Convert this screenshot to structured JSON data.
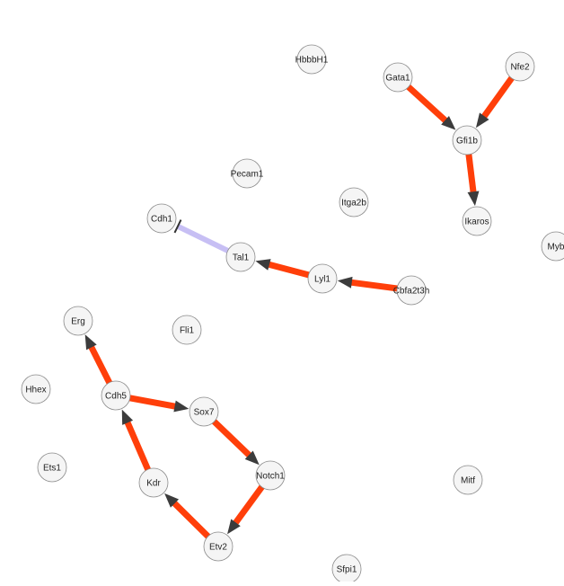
{
  "graph": {
    "colors": {
      "activation": "#ff3f0a",
      "arrowhead": "#3c3c3c",
      "inhibition": "#c7bff4",
      "inhibition_bar": "#333333",
      "node_fill": "#f5f5f5",
      "node_stroke": "#8a8a8a"
    },
    "nodes": [
      {
        "id": "HbbbH1",
        "label": "HbbbH1"
      },
      {
        "id": "Gata1",
        "label": "Gata1"
      },
      {
        "id": "Nfe2",
        "label": "Nfe2"
      },
      {
        "id": "Gfi1b",
        "label": "Gfi1b"
      },
      {
        "id": "Pecam1",
        "label": "Pecam1"
      },
      {
        "id": "Itga2b",
        "label": "Itga2b"
      },
      {
        "id": "Cdh1",
        "label": "Cdh1"
      },
      {
        "id": "Ikaros",
        "label": "Ikaros"
      },
      {
        "id": "Myb",
        "label": "Myb"
      },
      {
        "id": "Tal1",
        "label": "Tal1"
      },
      {
        "id": "Lyl1",
        "label": "Lyl1"
      },
      {
        "id": "Cbfa2t3h",
        "label": "Cbfa2t3h"
      },
      {
        "id": "Erg",
        "label": "Erg"
      },
      {
        "id": "Fli1",
        "label": "Fli1"
      },
      {
        "id": "Hhex",
        "label": "Hhex"
      },
      {
        "id": "Cdh5",
        "label": "Cdh5"
      },
      {
        "id": "Sox7",
        "label": "Sox7"
      },
      {
        "id": "Ets1",
        "label": "Ets1"
      },
      {
        "id": "Notch1",
        "label": "Notch1"
      },
      {
        "id": "Kdr",
        "label": "Kdr"
      },
      {
        "id": "Mitf",
        "label": "Mitf"
      },
      {
        "id": "Etv2",
        "label": "Etv2"
      },
      {
        "id": "Sfpi1",
        "label": "Sfpi1"
      }
    ],
    "edges": [
      {
        "source": "Gata1",
        "target": "Gfi1b",
        "type": "activation"
      },
      {
        "source": "Nfe2",
        "target": "Gfi1b",
        "type": "activation"
      },
      {
        "source": "Gfi1b",
        "target": "Ikaros",
        "type": "activation"
      },
      {
        "source": "Tal1",
        "target": "Cdh1",
        "type": "inhibition"
      },
      {
        "source": "Lyl1",
        "target": "Tal1",
        "type": "activation"
      },
      {
        "source": "Cbfa2t3h",
        "target": "Lyl1",
        "type": "activation"
      },
      {
        "source": "Cdh5",
        "target": "Erg",
        "type": "activation"
      },
      {
        "source": "Cdh5",
        "target": "Sox7",
        "type": "activation"
      },
      {
        "source": "Sox7",
        "target": "Notch1",
        "type": "activation"
      },
      {
        "source": "Notch1",
        "target": "Etv2",
        "type": "activation"
      },
      {
        "source": "Etv2",
        "target": "Kdr",
        "type": "activation"
      },
      {
        "source": "Kdr",
        "target": "Cdh5",
        "type": "activation"
      }
    ]
  }
}
